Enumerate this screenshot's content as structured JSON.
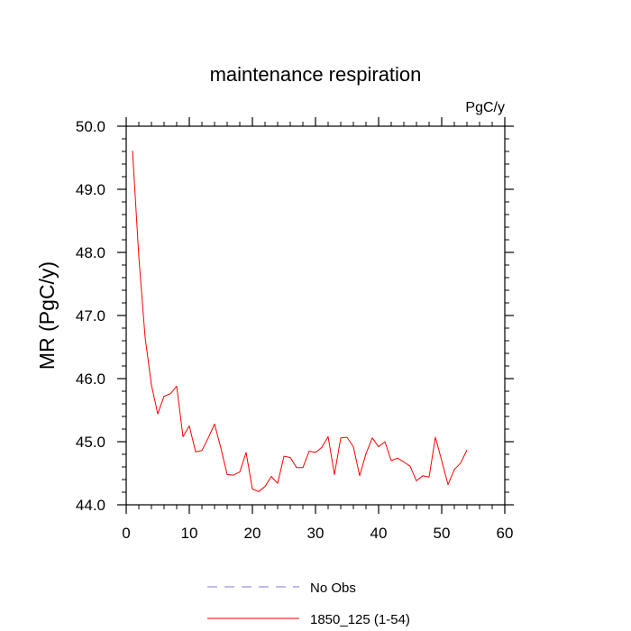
{
  "chart_data": {
    "type": "line",
    "title": "maintenance respiration",
    "units": "PgC/y",
    "xlabel": "",
    "ylabel": "MR  (PgC/y)",
    "xlim": [
      0,
      60
    ],
    "ylim": [
      44.0,
      50.0
    ],
    "xticks": [
      0,
      10,
      20,
      30,
      40,
      50,
      60
    ],
    "xtick_labels": [
      "0",
      "10",
      "20",
      "30",
      "40",
      "50",
      "60"
    ],
    "yticks": [
      44.0,
      45.0,
      46.0,
      47.0,
      48.0,
      49.0,
      50.0
    ],
    "ytick_labels": [
      "44.0",
      "45.0",
      "46.0",
      "47.0",
      "48.0",
      "49.0",
      "50.0"
    ],
    "grid": false,
    "legend_position": "bottom",
    "series": [
      {
        "name": "No Obs",
        "color": "#7b7bd6",
        "dash": "dashed",
        "x": [],
        "y": []
      },
      {
        "name": "1850_125 (1-54)",
        "color": "#ff0000",
        "dash": "solid",
        "x": [
          1,
          2,
          3,
          4,
          5,
          6,
          7,
          8,
          9,
          10,
          11,
          12,
          13,
          14,
          15,
          16,
          17,
          18,
          19,
          20,
          21,
          22,
          23,
          24,
          25,
          26,
          27,
          28,
          29,
          30,
          31,
          32,
          33,
          34,
          35,
          36,
          37,
          38,
          39,
          40,
          41,
          42,
          43,
          44,
          45,
          46,
          47,
          48,
          49,
          50,
          51,
          52,
          53,
          54
        ],
        "y": [
          49.61,
          47.93,
          46.65,
          45.9,
          45.44,
          45.72,
          45.76,
          45.88,
          45.08,
          45.25,
          44.84,
          44.86,
          45.06,
          45.28,
          44.9,
          44.48,
          44.47,
          44.52,
          44.83,
          44.25,
          44.21,
          44.29,
          44.45,
          44.34,
          44.77,
          44.75,
          44.59,
          44.59,
          44.85,
          44.83,
          44.91,
          45.08,
          44.48,
          45.06,
          45.07,
          44.92,
          44.46,
          44.81,
          45.06,
          44.92,
          45.0,
          44.7,
          44.74,
          44.68,
          44.61,
          44.38,
          44.46,
          44.44,
          45.07,
          44.7,
          44.32,
          44.56,
          44.66,
          44.87
        ]
      }
    ]
  }
}
